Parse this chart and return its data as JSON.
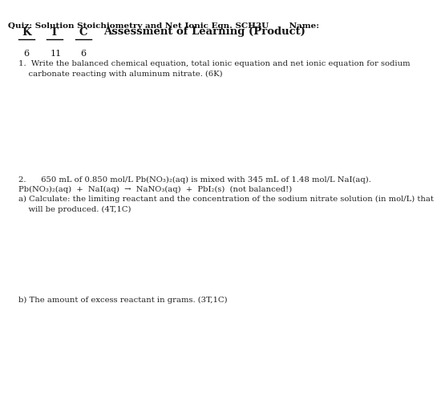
{
  "bg_color": "#ffffff",
  "header": "Quiz: Solution Stoichiometry and Net Ionic Eqn. SCH3U       Name:",
  "k_label": "K",
  "t_label": "T",
  "c_label": "C",
  "num_k": "6",
  "num_t": "11",
  "num_c": "6",
  "assessment": "Assessment of Learning (Product)",
  "q1": "1.  Write the balanced chemical equation, total ionic equation and net ionic equation for sodium\n    carbonate reacting with aluminum nitrate. (6K)",
  "q2_line1": "2.      650 mL of 0.850 mol/L Pb(NO₃)₂(aq) is mixed with 345 mL of 1.48 mol/L NaI(aq).",
  "q2_line2": "Pb(NO₃)₂(aq)  +  NaI(aq)  →  NaNO₃(aq)  +  PbI₂(s)  (not balanced!)",
  "q2a": "a) Calculate: the limiting reactant and the concentration of the sodium nitrate solution (in mol/L) that\n    will be produced. (4T,1C)",
  "q2b": "b) The amount of excess reactant in grams. (3T,1C)",
  "header_fontsize": 7.5,
  "score_fontsize": 9.5,
  "num_fontsize": 8.0,
  "body_fontsize": 7.2,
  "text_color": "#111111",
  "body_color": "#222222"
}
